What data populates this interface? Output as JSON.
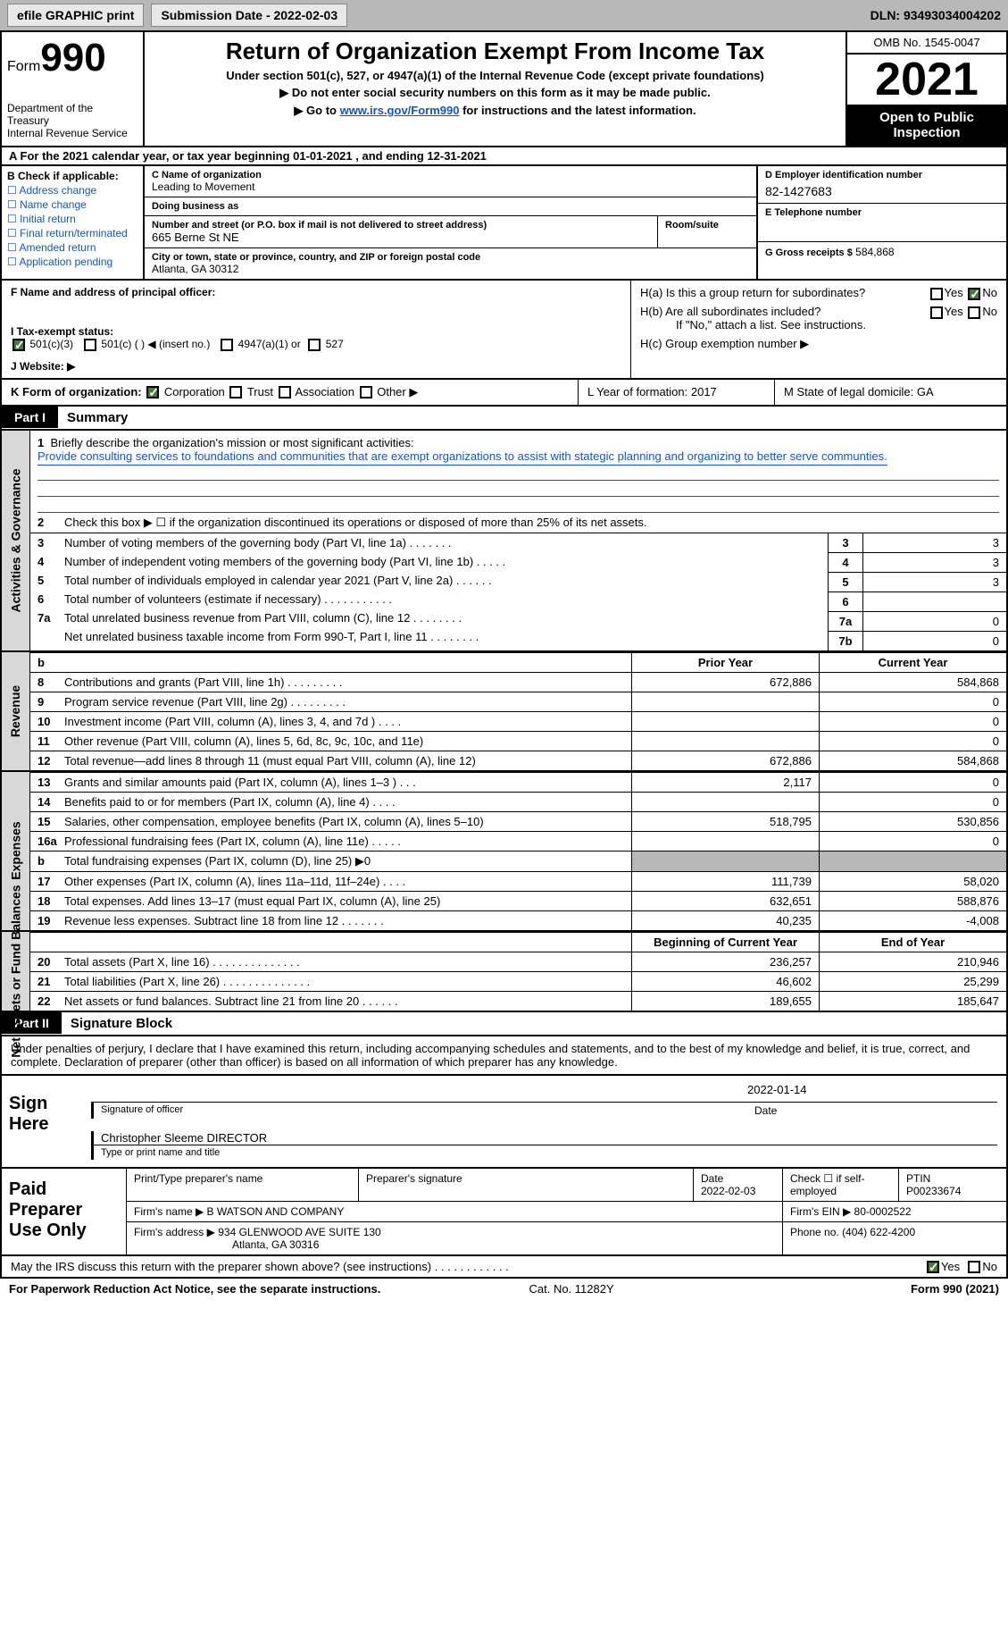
{
  "topbar": {
    "efile": "efile GRAPHIC print",
    "submission": "Submission Date - 2022-02-03",
    "dln": "DLN: 93493034004202"
  },
  "header": {
    "form_word": "Form",
    "form_num": "990",
    "dept": "Department of the Treasury",
    "irs": "Internal Revenue Service",
    "title": "Return of Organization Exempt From Income Tax",
    "sub": "Under section 501(c), 527, or 4947(a)(1) of the Internal Revenue Code (except private foundations)",
    "note1": "▶ Do not enter social security numbers on this form as it may be made public.",
    "note2_pre": "▶ Go to ",
    "note2_link": "www.irs.gov/Form990",
    "note2_post": " for instructions and the latest information.",
    "omb": "OMB No. 1545-0047",
    "year": "2021",
    "open": "Open to Public Inspection"
  },
  "row_a": "A For the 2021 calendar year, or tax year beginning 01-01-2021    , and ending 12-31-2021",
  "section_b": {
    "label": "B Check if applicable:",
    "opts": [
      "Address change",
      "Name change",
      "Initial return",
      "Final return/terminated",
      "Amended return",
      "Application pending"
    ]
  },
  "section_c": {
    "name_lbl": "C Name of organization",
    "name": "Leading to Movement",
    "dba_lbl": "Doing business as",
    "addr_lbl": "Number and street (or P.O. box if mail is not delivered to street address)",
    "room_lbl": "Room/suite",
    "addr": "665 Berne St NE",
    "city_lbl": "City or town, state or province, country, and ZIP or foreign postal code",
    "city": "Atlanta, GA   30312"
  },
  "section_d": {
    "ein_lbl": "D Employer identification number",
    "ein": "82-1427683",
    "tel_lbl": "E Telephone number",
    "gross_lbl": "G Gross receipts $",
    "gross": "584,868"
  },
  "section_f": {
    "lbl": "F Name and address of principal officer:"
  },
  "section_h": {
    "ha": "H(a)  Is this a group return for subordinates?",
    "hb": "H(b)  Are all subordinates included?",
    "hb_note": "If \"No,\" attach a list. See instructions.",
    "hc": "H(c)  Group exemption number ▶",
    "yes": "Yes",
    "no": "No"
  },
  "section_i": {
    "lbl": "I    Tax-exempt status:",
    "o1": "501(c)(3)",
    "o2": "501(c) (   ) ◀ (insert no.)",
    "o3": "4947(a)(1) or",
    "o4": "527"
  },
  "section_j": "J    Website: ▶",
  "section_k": {
    "lbl": "K Form of organization:",
    "o1": "Corporation",
    "o2": "Trust",
    "o3": "Association",
    "o4": "Other ▶",
    "l": "L Year of formation: 2017",
    "m": "M State of legal domicile: GA"
  },
  "part1": {
    "tag": "Part I",
    "title": "Summary"
  },
  "summary": {
    "q1": "Briefly describe the organization's mission or most significant activities:",
    "mission": "Provide consulting services to foundations and communities that are exempt organizations to assist with stategic planning and organizing to better serve communties.",
    "q2": "Check this box ▶ ☐  if the organization discontinued its operations or disposed of more than 25% of its net assets.",
    "lines": [
      {
        "n": "3",
        "t": "Number of voting members of the governing body (Part VI, line 1a)   .    .    .    .    .    .    .",
        "k": "3",
        "v": "3"
      },
      {
        "n": "4",
        "t": "Number of independent voting members of the governing body (Part VI, line 1b)   .    .    .    .    .",
        "k": "4",
        "v": "3"
      },
      {
        "n": "5",
        "t": "Total number of individuals employed in calendar year 2021 (Part V, line 2a)   .    .    .    .    .    .",
        "k": "5",
        "v": "3"
      },
      {
        "n": "6",
        "t": "Total number of volunteers (estimate if necessary)    .    .    .    .    .    .    .    .    .    .    .",
        "k": "6",
        "v": ""
      },
      {
        "n": "7a",
        "t": "Total unrelated business revenue from Part VIII, column (C), line 12   .    .    .    .    .    .    .    .",
        "k": "7a",
        "v": "0"
      },
      {
        "n": "",
        "t": "Net unrelated business taxable income from Form 990-T, Part I, line 11   .    .    .    .    .    .    .    .",
        "k": "7b",
        "v": "0"
      }
    ]
  },
  "cols": {
    "b": "b",
    "prior": "Prior Year",
    "curr": "Current Year",
    "boy": "Beginning of Current Year",
    "eoy": "End of Year"
  },
  "revenue": {
    "label": "Revenue",
    "rows": [
      {
        "n": "8",
        "t": "Contributions and grants (Part VIII, line 1h)    .    .    .    .    .    .    .    .    .",
        "p": "672,886",
        "c": "584,868"
      },
      {
        "n": "9",
        "t": "Program service revenue (Part VIII, line 2g)    .    .    .    .    .    .    .    .    .",
        "p": "",
        "c": "0"
      },
      {
        "n": "10",
        "t": "Investment income (Part VIII, column (A), lines 3, 4, and 7d )    .    .    .    .",
        "p": "",
        "c": "0"
      },
      {
        "n": "11",
        "t": "Other revenue (Part VIII, column (A), lines 5, 6d, 8c, 9c, 10c, and 11e)",
        "p": "",
        "c": "0"
      },
      {
        "n": "12",
        "t": "Total revenue—add lines 8 through 11 (must equal Part VIII, column (A), line 12)",
        "p": "672,886",
        "c": "584,868"
      }
    ]
  },
  "expenses": {
    "label": "Expenses",
    "rows": [
      {
        "n": "13",
        "t": "Grants and similar amounts paid (Part IX, column (A), lines 1–3 )   .    .    .",
        "p": "2,117",
        "c": "0"
      },
      {
        "n": "14",
        "t": "Benefits paid to or for members (Part IX, column (A), line 4)   .    .    .    .",
        "p": "",
        "c": "0"
      },
      {
        "n": "15",
        "t": "Salaries, other compensation, employee benefits (Part IX, column (A), lines 5–10)",
        "p": "518,795",
        "c": "530,856"
      },
      {
        "n": "16a",
        "t": "Professional fundraising fees (Part IX, column (A), line 11e)    .    .    .    .    .",
        "p": "",
        "c": "0"
      },
      {
        "n": "b",
        "t": "Total fundraising expenses (Part IX, column (D), line 25) ▶0",
        "p": "SHADE",
        "c": "SHADE"
      },
      {
        "n": "17",
        "t": "Other expenses (Part IX, column (A), lines 11a–11d, 11f–24e)    .    .    .    .",
        "p": "111,739",
        "c": "58,020"
      },
      {
        "n": "18",
        "t": "Total expenses. Add lines 13–17 (must equal Part IX, column (A), line 25)",
        "p": "632,651",
        "c": "588,876"
      },
      {
        "n": "19",
        "t": "Revenue less expenses. Subtract line 18 from line 12   .    .    .    .    .    .    .",
        "p": "40,235",
        "c": "-4,008"
      }
    ]
  },
  "netassets": {
    "label": "Net Assets or Fund Balances",
    "rows": [
      {
        "n": "20",
        "t": "Total assets (Part X, line 16)   .    .    .    .    .    .    .    .    .    .    .    .    .    .",
        "p": "236,257",
        "c": "210,946"
      },
      {
        "n": "21",
        "t": "Total liabilities (Part X, line 26)   .    .    .    .    .    .    .    .    .    .    .    .    .    .",
        "p": "46,602",
        "c": "25,299"
      },
      {
        "n": "22",
        "t": "Net assets or fund balances. Subtract line 21 from line 20   .    .    .    .    .    .",
        "p": "189,655",
        "c": "185,647"
      }
    ]
  },
  "part2": {
    "tag": "Part II",
    "title": "Signature Block"
  },
  "sig": {
    "intro": "Under penalties of perjury, I declare that I have examined this return, including accompanying schedules and statements, and to the best of my knowledge and belief, it is true, correct, and complete. Declaration of preparer (other than officer) is based on all information of which preparer has any knowledge.",
    "sign_here": "Sign Here",
    "sig_officer": "Signature of officer",
    "date": "2022-01-14",
    "date_lbl": "Date",
    "name": "Christopher Sleeme  DIRECTOR",
    "name_lbl": "Type or print name and title"
  },
  "prep": {
    "label": "Paid Preparer Use Only",
    "h_name": "Print/Type preparer's name",
    "h_sig": "Preparer's signature",
    "h_date": "Date",
    "date": "2022-02-03",
    "h_check": "Check ☐ if self-employed",
    "h_ptin": "PTIN",
    "ptin": "P00233674",
    "firm_lbl": "Firm's name      ▶",
    "firm": "B WATSON AND COMPANY",
    "ein_lbl": "Firm's EIN ▶",
    "ein": "80-0002522",
    "addr_lbl": "Firm's address ▶",
    "addr1": "934 GLENWOOD AVE SUITE 130",
    "addr2": "Atlanta, GA  30316",
    "phone_lbl": "Phone no.",
    "phone": "(404) 622-4200"
  },
  "discuss": {
    "q": "May the IRS discuss this return with the preparer shown above? (see instructions)    .    .    .    .    .    .    .    .    .    .    .    .",
    "yes": "Yes",
    "no": "No"
  },
  "footer": {
    "l": "For Paperwork Reduction Act Notice, see the separate instructions.",
    "m": "Cat. No. 11282Y",
    "r": "Form 990 (2021)"
  },
  "vlabels": {
    "act": "Activities & Governance"
  }
}
